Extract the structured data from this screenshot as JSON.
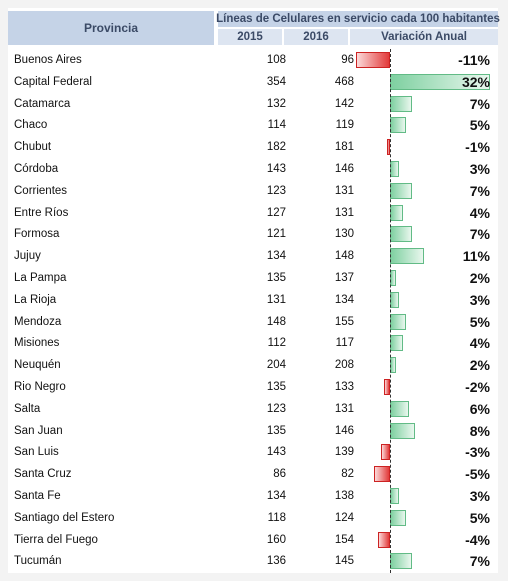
{
  "header": {
    "province_label": "Provincia",
    "title": "Líneas de Celulares en servicio cada 100 habitantes",
    "col_2015": "2015",
    "col_2016": "2016",
    "col_variation": "Variación Anual"
  },
  "rows": [
    {
      "name": "Buenos Aires",
      "v2015": "108",
      "v2016": "96",
      "pct": "-11%",
      "variation": -11
    },
    {
      "name": "Capital Federal",
      "v2015": "354",
      "v2016": "468",
      "pct": "32%",
      "variation": 32
    },
    {
      "name": "Catamarca",
      "v2015": "132",
      "v2016": "142",
      "pct": "7%",
      "variation": 7
    },
    {
      "name": "Chaco",
      "v2015": "114",
      "v2016": "119",
      "pct": "5%",
      "variation": 5
    },
    {
      "name": "Chubut",
      "v2015": "182",
      "v2016": "181",
      "pct": "-1%",
      "variation": -1
    },
    {
      "name": "Córdoba",
      "v2015": "143",
      "v2016": "146",
      "pct": "3%",
      "variation": 3
    },
    {
      "name": "Corrientes",
      "v2015": "123",
      "v2016": "131",
      "pct": "7%",
      "variation": 7
    },
    {
      "name": "Entre Ríos",
      "v2015": "127",
      "v2016": "131",
      "pct": "4%",
      "variation": 4
    },
    {
      "name": "Formosa",
      "v2015": "121",
      "v2016": "130",
      "pct": "7%",
      "variation": 7
    },
    {
      "name": "Jujuy",
      "v2015": "134",
      "v2016": "148",
      "pct": "11%",
      "variation": 11
    },
    {
      "name": "La Pampa",
      "v2015": "135",
      "v2016": "137",
      "pct": "2%",
      "variation": 2
    },
    {
      "name": "La Rioja",
      "v2015": "131",
      "v2016": "134",
      "pct": "3%",
      "variation": 3
    },
    {
      "name": "Mendoza",
      "v2015": "148",
      "v2016": "155",
      "pct": "5%",
      "variation": 5
    },
    {
      "name": "Misiones",
      "v2015": "112",
      "v2016": "117",
      "pct": "4%",
      "variation": 4
    },
    {
      "name": "Neuquén",
      "v2015": "204",
      "v2016": "208",
      "pct": "2%",
      "variation": 2
    },
    {
      "name": "Rio Negro",
      "v2015": "135",
      "v2016": "133",
      "pct": "-2%",
      "variation": -2
    },
    {
      "name": "Salta",
      "v2015": "123",
      "v2016": "131",
      "pct": "6%",
      "variation": 6
    },
    {
      "name": "San Juan",
      "v2015": "135",
      "v2016": "146",
      "pct": "8%",
      "variation": 8
    },
    {
      "name": "San Luis",
      "v2015": "143",
      "v2016": "139",
      "pct": "-3%",
      "variation": -3
    },
    {
      "name": "Santa Cruz",
      "v2015": "86",
      "v2016": "82",
      "pct": "-5%",
      "variation": -5
    },
    {
      "name": "Santa Fe",
      "v2015": "134",
      "v2016": "138",
      "pct": "3%",
      "variation": 3
    },
    {
      "name": "Santiago del Estero",
      "v2015": "118",
      "v2016": "124",
      "pct": "5%",
      "variation": 5
    },
    {
      "name": "Tierra del Fuego",
      "v2015": "160",
      "v2016": "154",
      "pct": "-4%",
      "variation": -4
    },
    {
      "name": "Tucumán",
      "v2015": "136",
      "v2016": "145",
      "pct": "7%",
      "variation": 7
    }
  ],
  "colors": {
    "header_bg": "#c5d3e7",
    "subheader_bg": "#dde5f1",
    "positive_bar": "#7ed0a0",
    "negative_bar": "#e23a3a"
  }
}
